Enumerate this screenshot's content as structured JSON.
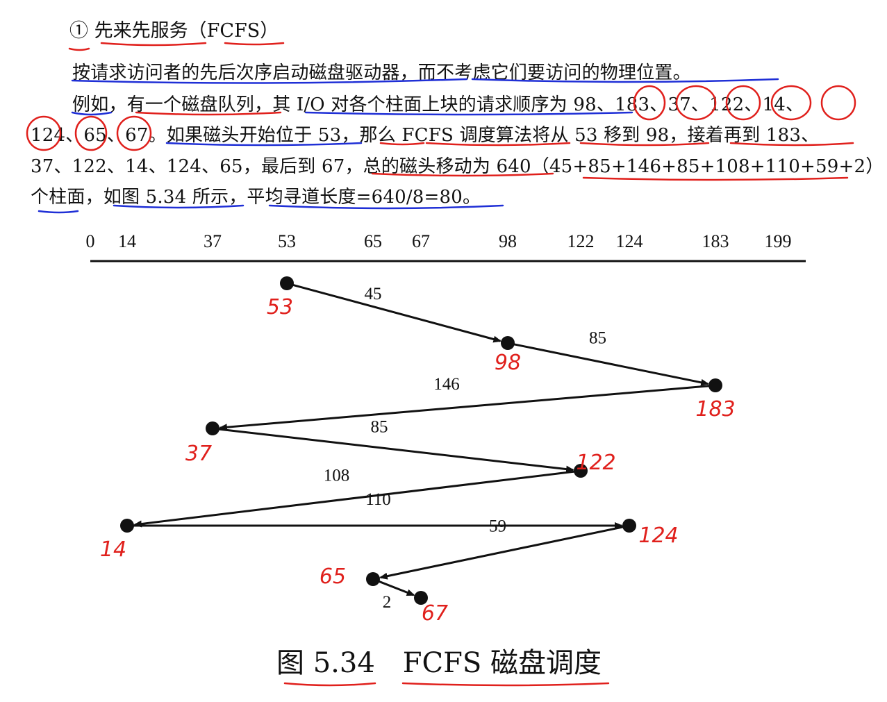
{
  "heading": "① 先来先服务（FCFS）",
  "paragraph": {
    "line1": "按请求访问者的先后次序启动磁盘驱动器，而不考虑它们要访问的物理位置。",
    "line2": "例如，有一个磁盘队列，其 I/O 对各个柱面上块的请求顺序为 98、183、37、122、14、",
    "line3": "124、65、67。如果磁头开始位于 53，那么 FCFS 调度算法将从 53 移到 98，接着再到 183、",
    "line4": "37、122、14、124、65，最后到 67，总的磁头移动为 640（45+85+146+85+108+110+59+2）",
    "line5": "个柱面，如图 5.34 所示，平均寻道长度=640/8=80。"
  },
  "chart_data": {
    "type": "line",
    "axis_ticks": [
      0,
      14,
      37,
      53,
      65,
      67,
      98,
      122,
      124,
      183,
      199
    ],
    "axis_range": [
      0,
      199
    ],
    "sequence": [
      53,
      98,
      183,
      37,
      122,
      14,
      124,
      65,
      67
    ],
    "segment_lengths": [
      45,
      85,
      146,
      85,
      108,
      110,
      59,
      2
    ],
    "handwritten_labels": [
      "53",
      "98",
      "183",
      "37",
      "122",
      "14",
      "124",
      "65",
      "67"
    ]
  },
  "caption": {
    "figure_number": "图 5.34",
    "figure_title": "FCFS 磁盘调度"
  },
  "colors": {
    "ink": "#111111",
    "annotation_red": "#e0201c",
    "annotation_blue": "#1f2fd6"
  }
}
